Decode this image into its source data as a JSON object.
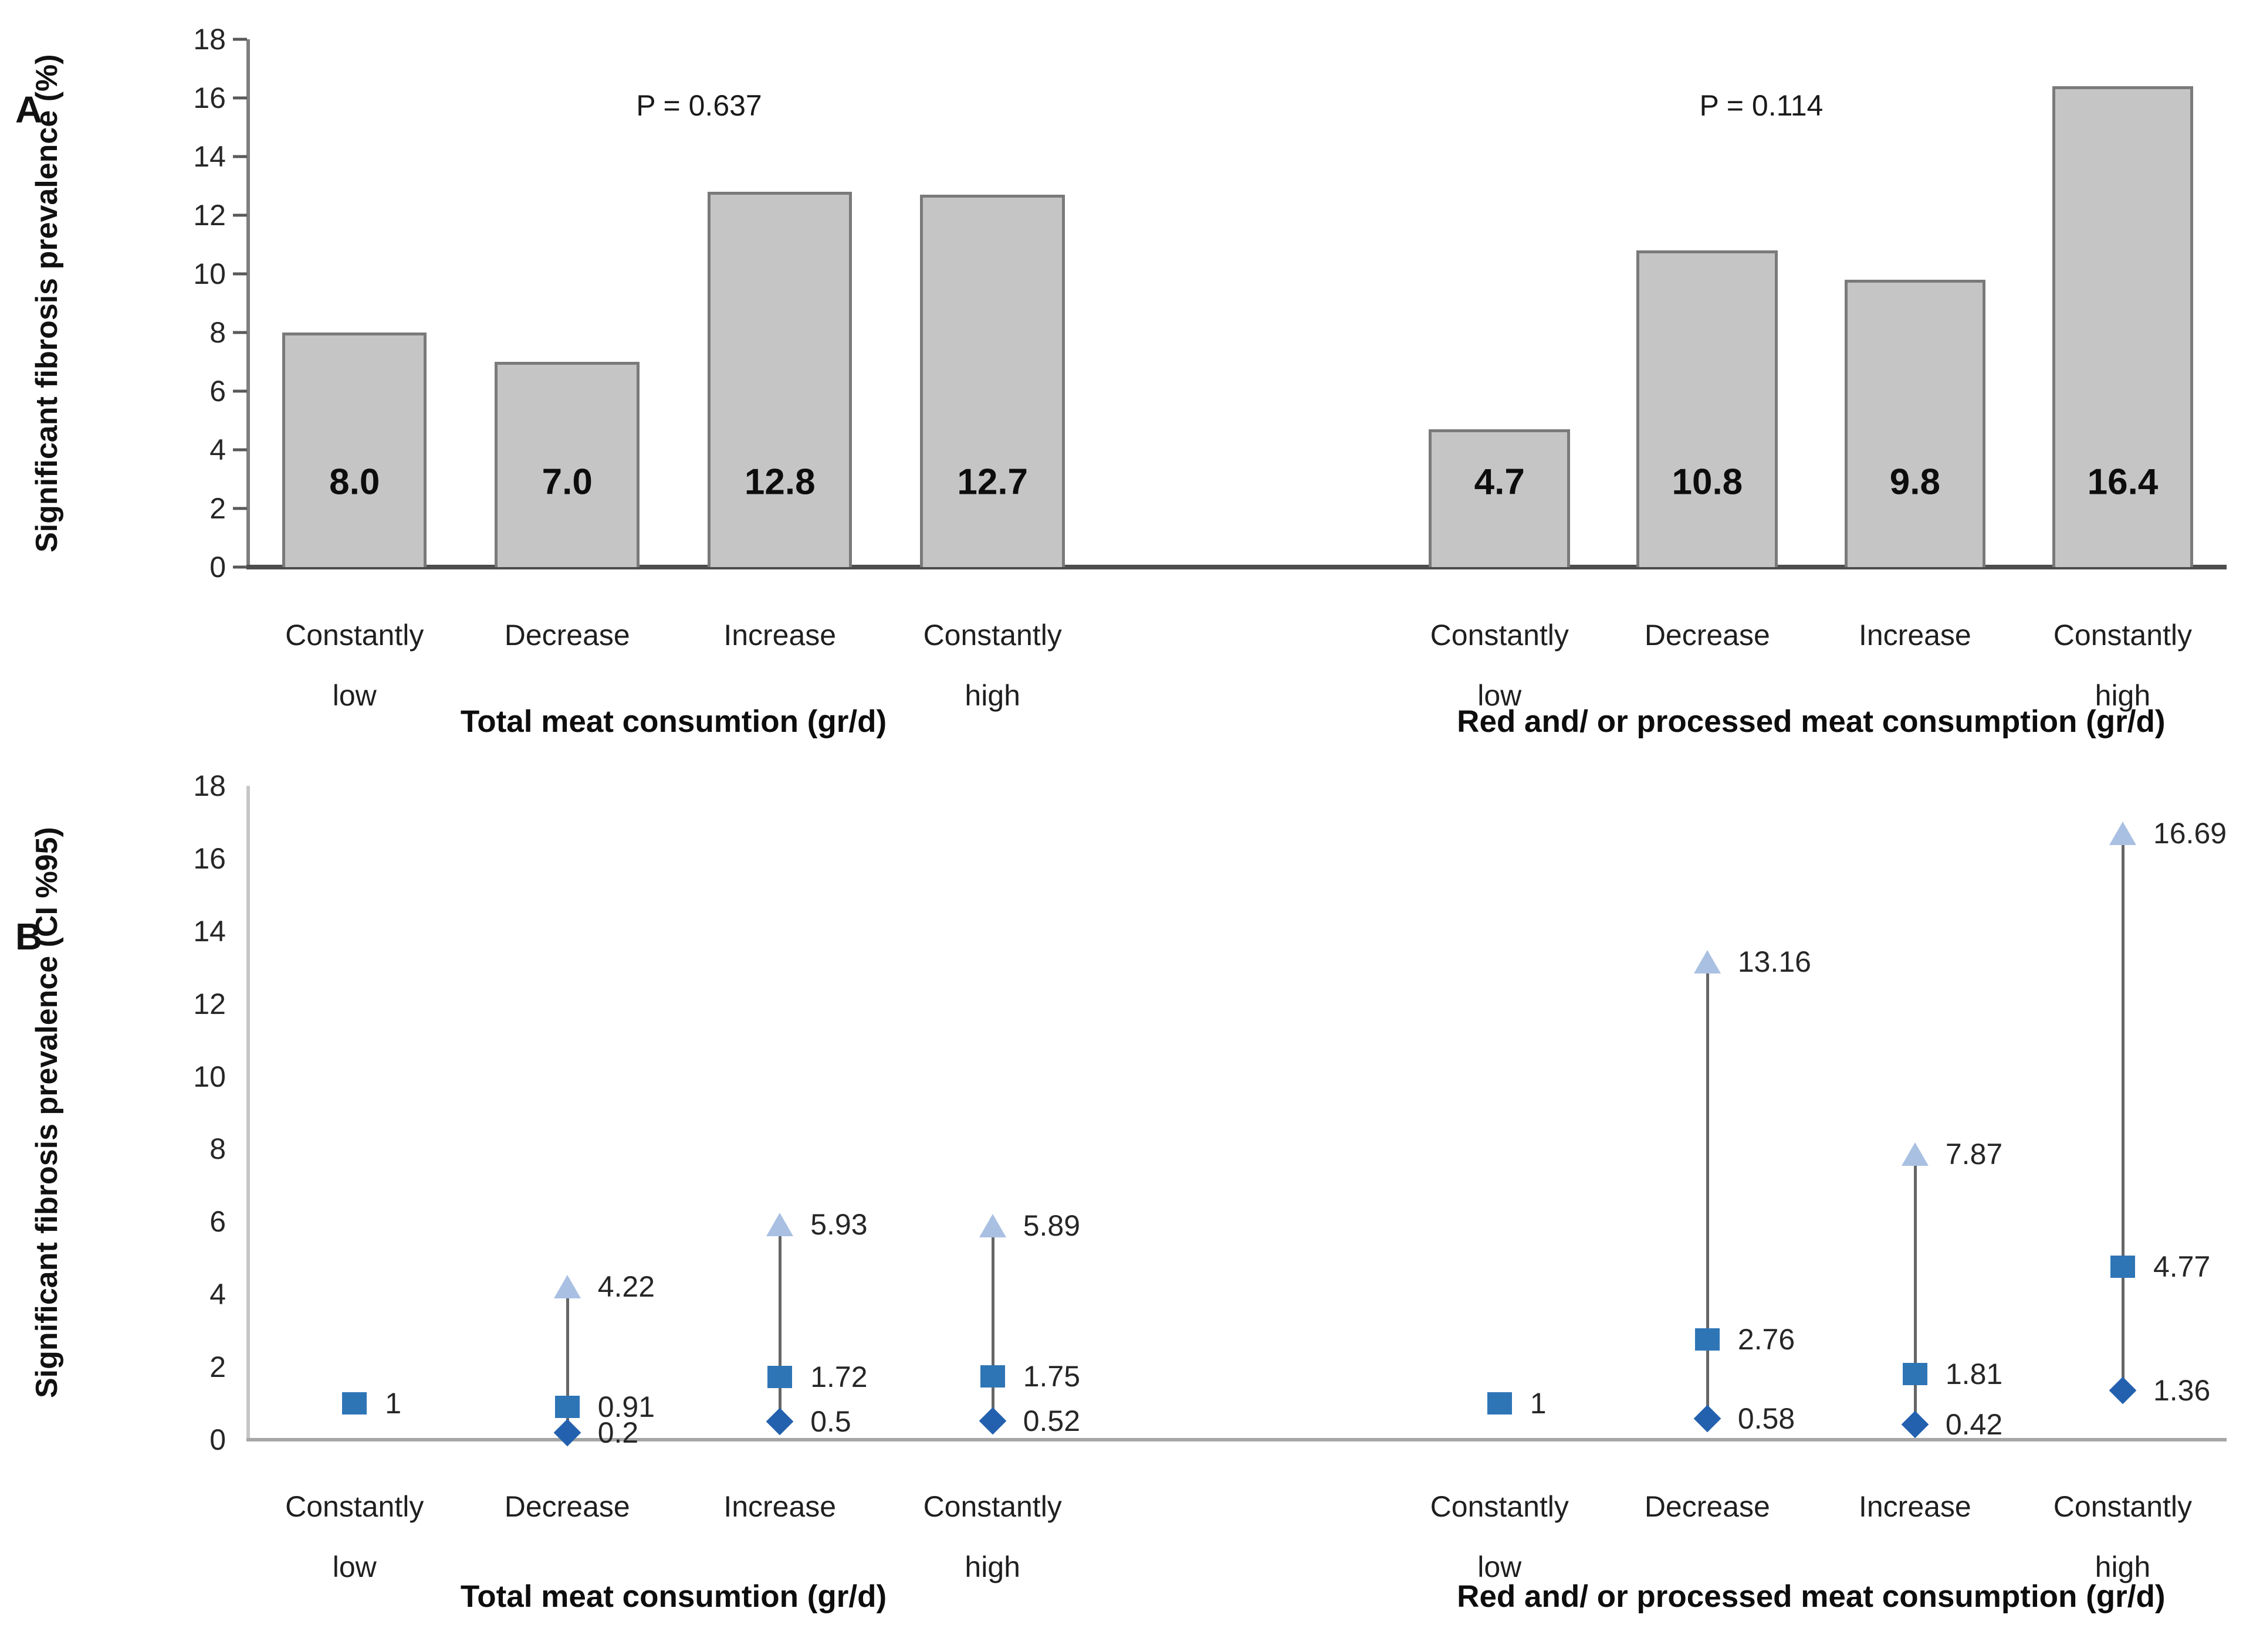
{
  "colors": {
    "bar-fill": "#c5c5c5",
    "bar-border": "#7a7a7a",
    "axis-a": "#7f7f7f",
    "baseline-a": "#4d4d4d",
    "tick-a": "#595959",
    "axis-b": "#c6c6c6",
    "baseline-b": "#a6a6a6",
    "ci-line": "#666666",
    "marker-square": "#2e75b6",
    "marker-triangle": "#a9c0e2",
    "marker-diamond": "#2361ae",
    "ink": "#1f1f1f"
  },
  "chart_data": {
    "panels": [
      {
        "label": "A",
        "type": "bar",
        "ylabel": "Significant fibrosis prevalence (%)",
        "ylim": [
          0,
          18
        ],
        "yticks": [
          0,
          2,
          4,
          6,
          8,
          10,
          12,
          14,
          16,
          18
        ],
        "tick_marks": true,
        "value_label_y": 2.9,
        "legend": "none",
        "grid": "off",
        "groups": [
          {
            "xlabel": "Total meat consumtion (gr/d)",
            "p_label": "P = 0.637",
            "categories": [
              [
                "Constantly",
                "low"
              ],
              [
                "Decrease"
              ],
              [
                "Increase"
              ],
              [
                "Constantly",
                "high"
              ]
            ],
            "values": [
              8.0,
              7.0,
              12.8,
              12.7
            ],
            "value_labels": [
              "8.0",
              "7.0",
              "12.8",
              "12.7"
            ]
          },
          {
            "xlabel": "Red and/ or processed meat consumption (gr/d)",
            "p_label": "P = 0.114",
            "categories": [
              [
                "Constantly",
                "low"
              ],
              [
                "Decrease"
              ],
              [
                "Increase"
              ],
              [
                "Constantly",
                "high"
              ]
            ],
            "values": [
              4.7,
              10.8,
              9.8,
              16.4
            ],
            "value_labels": [
              "4.7",
              "10.8",
              "9.8",
              "16.4"
            ]
          }
        ]
      },
      {
        "label": "B",
        "type": "ci",
        "ylabel": "Significant fibrosis prevalence (CI %95)",
        "ylim": [
          0,
          18
        ],
        "yticks": [
          0,
          2,
          4,
          6,
          8,
          10,
          12,
          14,
          16,
          18
        ],
        "tick_marks": false,
        "legend": "none",
        "grid": "off",
        "groups": [
          {
            "xlabel": "Total meat consumtion (gr/d)",
            "categories": [
              [
                "Constantly",
                "low"
              ],
              [
                "Decrease"
              ],
              [
                "Increase"
              ],
              [
                "Constantly",
                "high"
              ]
            ],
            "points": [
              {
                "or": 1,
                "or_label": "1",
                "lo": null,
                "lo_label": "",
                "hi": null,
                "hi_label": ""
              },
              {
                "or": 0.91,
                "or_label": "0.91",
                "lo": 0.2,
                "lo_label": "0.2",
                "hi": 4.22,
                "hi_label": "4.22"
              },
              {
                "or": 1.72,
                "or_label": "1.72",
                "lo": 0.5,
                "lo_label": "0.5",
                "hi": 5.93,
                "hi_label": "5.93"
              },
              {
                "or": 1.75,
                "or_label": "1.75",
                "lo": 0.52,
                "lo_label": "0.52",
                "hi": 5.89,
                "hi_label": "5.89"
              }
            ]
          },
          {
            "xlabel": "Red and/ or processed meat consumption (gr/d)",
            "categories": [
              [
                "Constantly",
                "low"
              ],
              [
                "Decrease"
              ],
              [
                "Increase"
              ],
              [
                "Constantly",
                "high"
              ]
            ],
            "points": [
              {
                "or": 1,
                "or_label": "1",
                "lo": null,
                "lo_label": "",
                "hi": null,
                "hi_label": ""
              },
              {
                "or": 2.76,
                "or_label": "2.76",
                "lo": 0.58,
                "lo_label": "0.58",
                "hi": 13.16,
                "hi_label": "13.16"
              },
              {
                "or": 1.81,
                "or_label": "1.81",
                "lo": 0.42,
                "lo_label": "0.42",
                "hi": 7.87,
                "hi_label": "7.87"
              },
              {
                "or": 4.77,
                "or_label": "4.77",
                "lo": 1.36,
                "lo_label": "1.36",
                "hi": 16.69,
                "hi_label": "16.69"
              }
            ]
          }
        ]
      }
    ]
  }
}
